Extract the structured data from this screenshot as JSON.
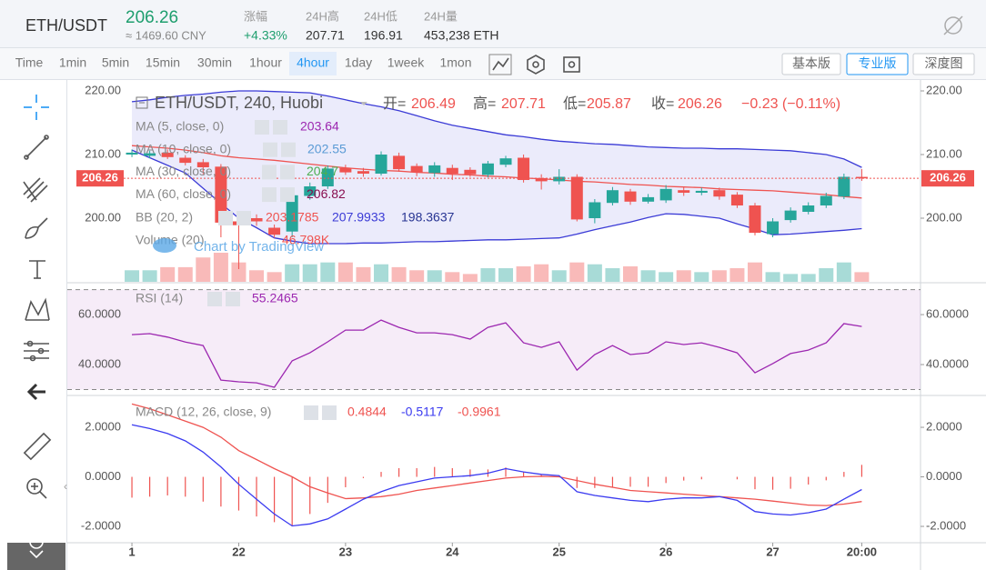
{
  "header": {
    "pair": "ETH/USDT",
    "price": 206.26,
    "cny": "≈ 1469.60 CNY",
    "stats": [
      {
        "label": "涨幅",
        "value": "+4.33%"
      },
      {
        "label": "24H高",
        "value": 207.71
      },
      {
        "label": "24H低",
        "value": 196.91
      },
      {
        "label": "24H量",
        "value": "453,238 ETH"
      }
    ]
  },
  "toolbar": {
    "intervals": [
      "Time",
      "1min",
      "5min",
      "15min",
      "30min",
      "1hour",
      "4hour",
      "1day",
      "1week",
      "1mon"
    ],
    "active": "4hour",
    "views": [
      "基本版",
      "专业版",
      "深度图"
    ],
    "active_view": "专业版"
  },
  "chart": {
    "symbol": "ETH/USDT, 240, Huobi",
    "ohlc_labels": [
      "开=",
      "高=",
      "低=",
      "收="
    ],
    "change": "−0.23 (−0.11%)",
    "watermark": "Chart by TradingView",
    "xlim": [
      -3.63,
      44.3
    ],
    "xticks": [
      {
        "value": 0,
        "label": "1"
      },
      {
        "value": 6,
        "label": "22"
      },
      {
        "value": 12,
        "label": "23"
      },
      {
        "value": 18,
        "label": "24"
      },
      {
        "value": 24,
        "label": "25"
      },
      {
        "value": 30,
        "label": "26"
      },
      {
        "value": 36,
        "label": "27"
      },
      {
        "value": 41,
        "label": "20:00"
      }
    ],
    "ylim": [
      190,
      221.43
    ],
    "yticks": [
      {
        "value": 200,
        "label": "200.00"
      },
      {
        "value": 210,
        "label": "210.00"
      },
      {
        "value": 220,
        "label": "220.00"
      }
    ],
    "candles": {
      "open": [
        210.0,
        209.8,
        210.3,
        209.5,
        208.8,
        208.1,
        199.5,
        200.0,
        198.5,
        197.9,
        203.5,
        205.0,
        207.9,
        207.4,
        207.0,
        209.8,
        208.2,
        207.1,
        207.9,
        207.6,
        206.8,
        208.4,
        209.5,
        206.3,
        205.8,
        206.5,
        200.0,
        202.4,
        204.2,
        202.6,
        202.8,
        204.4,
        204.0,
        204.4,
        203.7,
        202.0,
        197.5,
        199.7,
        201.0,
        202.0,
        203.4,
        206.49
      ],
      "high": [
        210.8,
        210.6,
        210.8,
        209.9,
        209.3,
        208.5,
        200.3,
        200.6,
        199.0,
        204.0,
        205.6,
        208.3,
        208.4,
        207.9,
        210.5,
        210.3,
        208.6,
        208.8,
        208.4,
        208.0,
        209.0,
        209.8,
        210.0,
        206.9,
        207.7,
        206.9,
        203.0,
        204.9,
        204.6,
        203.8,
        205.2,
        204.9,
        204.8,
        204.8,
        204.1,
        202.4,
        200.0,
        201.7,
        202.5,
        204.0,
        207.0,
        207.71
      ],
      "low": [
        209.6,
        209.4,
        209.3,
        208.3,
        206.9,
        197.0,
        192.0,
        198.8,
        196.9,
        197.0,
        202.9,
        204.6,
        206.8,
        206.5,
        206.7,
        207.3,
        206.6,
        206.5,
        206.0,
        206.5,
        206.4,
        208.0,
        205.6,
        204.5,
        205.3,
        199.5,
        199.2,
        202.0,
        202.1,
        202.3,
        202.4,
        203.5,
        203.6,
        202.9,
        201.6,
        197.3,
        197.0,
        199.3,
        200.6,
        201.6,
        203.0,
        205.87
      ],
      "close": [
        210.3,
        210.2,
        209.6,
        208.7,
        208.0,
        199.3,
        198.9,
        199.5,
        197.4,
        203.6,
        205.0,
        207.8,
        207.2,
        207.0,
        210.0,
        207.7,
        207.2,
        208.3,
        207.0,
        206.9,
        208.6,
        209.4,
        206.0,
        205.8,
        206.5,
        199.8,
        202.5,
        204.4,
        202.6,
        203.3,
        204.6,
        204.0,
        204.3,
        203.4,
        202.0,
        197.7,
        199.5,
        201.2,
        202.0,
        203.5,
        206.5,
        206.26
      ]
    },
    "volume_legend": "Volume (20)",
    "volume_label": "46.798K",
    "volume": [
      56,
      56,
      71,
      71,
      118,
      141,
      94,
      56,
      47,
      85,
      85,
      94,
      94,
      71,
      85,
      71,
      56,
      56,
      47,
      38,
      66,
      66,
      75,
      85,
      56,
      94,
      85,
      66,
      75,
      56,
      47,
      56,
      47,
      56,
      66,
      94,
      47,
      38,
      38,
      66,
      94,
      46.798
    ],
    "ma": [
      {
        "label": "MA (5, close, 0)",
        "value": 203.64,
        "color": "#9c27b0"
      },
      {
        "label": "MA (10, close, 0)",
        "value": 202.55,
        "color": "#5b9bd5"
      },
      {
        "label": "MA (30, close, 0)",
        "value": 204.7,
        "color": "#4caf50"
      },
      {
        "label": "MA (60, close, 0)",
        "value": 206.82,
        "color": "#880e4f"
      }
    ],
    "bb": {
      "label": "BB (20, 2)",
      "basis_color": "#ef5350",
      "upper_color": "#3b3bd6",
      "lower_color": "#283593",
      "basis": [
        211.4,
        211.2,
        211,
        210.7,
        210.3,
        209.8,
        209.5,
        209.3,
        209.1,
        208.8,
        208.5,
        208.2,
        207.9,
        207.7,
        207.5,
        207.4,
        207.2,
        207.1,
        206.9,
        206.8,
        206.6,
        206.5,
        206.3,
        206.2,
        206,
        205.8,
        205.7,
        205.5,
        205.3,
        205.2,
        205,
        204.9,
        204.8,
        204.6,
        204.5,
        204.4,
        204.3,
        204.1,
        203.9,
        203.7,
        203.4,
        203.1785
      ],
      "upper": [
        218.3,
        218.6,
        219,
        219.3,
        219.5,
        219.8,
        220,
        220,
        219.9,
        219.8,
        219.7,
        219.2,
        218.6,
        218,
        217.5,
        216.9,
        216.1,
        215.3,
        214.6,
        214.1,
        213.6,
        213.1,
        212.8,
        212.4,
        212.1,
        211.9,
        211.7,
        211.6,
        211.4,
        211.2,
        211.1,
        211,
        211,
        210.9,
        210.9,
        210.8,
        210.7,
        210.6,
        210.3,
        210,
        209.3,
        207.9933
      ],
      "lower": [
        210.7,
        209.5,
        208.3,
        207.1,
        204.7,
        202.3,
        200,
        198.5,
        196.9,
        196.4,
        196,
        196,
        196,
        196.1,
        196.1,
        196.2,
        196.3,
        196.3,
        196.4,
        196.5,
        196.6,
        196.6,
        196.7,
        196.8,
        196.9,
        197.5,
        198.2,
        198.8,
        199.4,
        200.1,
        200.7,
        200.6,
        200.3,
        200,
        199.1,
        198.3,
        197.4,
        197.5,
        197.7,
        197.9,
        198.1,
        198.3637
      ]
    },
    "rsi": {
      "label": "RSI (14)",
      "color": "#9c27b0",
      "ylim": [
        28,
        72.4
      ],
      "bands": [
        30,
        70
      ],
      "yticks": [
        {
          "value": 40,
          "label": "40.0000"
        },
        {
          "value": 60,
          "label": "60.0000"
        }
      ],
      "values": [
        52,
        52.4,
        51,
        49,
        47.6,
        33.8,
        33.1,
        32.7,
        30.9,
        41.5,
        44.7,
        49.1,
        53.8,
        53.8,
        57.8,
        54.9,
        52.7,
        52.7,
        52,
        50.2,
        54.9,
        56.7,
        48.7,
        46.9,
        49.1,
        37.8,
        44,
        47.6,
        44,
        44.7,
        49.1,
        48,
        48.7,
        46.9,
        44.7,
        36.7,
        40.4,
        44.4,
        45.8,
        48.7,
        56.4,
        55.2465
      ]
    },
    "macd": {
      "label": "MACD (12, 26, close, 9)",
      "ylim": [
        -2.66,
        3.25
      ],
      "yticks": [
        {
          "value": -2,
          "label": "-2.0000"
        },
        {
          "value": 0,
          "label": "0.0000"
        },
        {
          "value": 2,
          "label": "2.0000"
        }
      ],
      "hist_color": "#ef5350",
      "macd_color": "#3b3bf0",
      "signal_color": "#ef5350",
      "hist": [
        -0.84,
        -0.8,
        -0.75,
        -0.8,
        -1.0,
        -1.2,
        -1.36,
        -1.6,
        -1.83,
        -1.98,
        -1.5,
        -1.05,
        -0.42,
        -0.05,
        0.2,
        0.35,
        0.35,
        0.4,
        0.35,
        0.3,
        0.3,
        0.38,
        0.2,
        0.08,
        0.05,
        -0.45,
        -0.45,
        -0.43,
        -0.4,
        -0.4,
        -0.25,
        -0.15,
        -0.1,
        0.0,
        -0.1,
        -0.5,
        -0.52,
        -0.48,
        -0.31,
        -0.14,
        0.2,
        0.4844
      ],
      "macd": [
        2.1,
        1.95,
        1.75,
        1.45,
        1.0,
        0.4,
        -0.3,
        -0.9,
        -1.5,
        -1.98,
        -1.9,
        -1.7,
        -1.3,
        -0.9,
        -0.6,
        -0.35,
        -0.2,
        -0.05,
        0.0,
        0.05,
        0.15,
        0.33,
        0.2,
        0.1,
        0.05,
        -0.6,
        -0.75,
        -0.85,
        -0.95,
        -1.0,
        -0.9,
        -0.85,
        -0.85,
        -0.8,
        -0.95,
        -1.4,
        -1.5,
        -1.54,
        -1.45,
        -1.3,
        -0.9,
        -0.5117
      ],
      "signal": [
        2.94,
        2.75,
        2.5,
        2.25,
        2.0,
        1.6,
        1.06,
        0.7,
        0.33,
        0.0,
        -0.4,
        -0.65,
        -0.88,
        -0.85,
        -0.8,
        -0.7,
        -0.55,
        -0.45,
        -0.35,
        -0.25,
        -0.15,
        -0.05,
        0.0,
        0.02,
        0.0,
        -0.15,
        -0.3,
        -0.42,
        -0.55,
        -0.6,
        -0.65,
        -0.7,
        -0.75,
        -0.8,
        -0.85,
        -0.9,
        -0.98,
        -1.06,
        -1.14,
        -1.16,
        -1.1,
        -0.9961
      ]
    }
  }
}
